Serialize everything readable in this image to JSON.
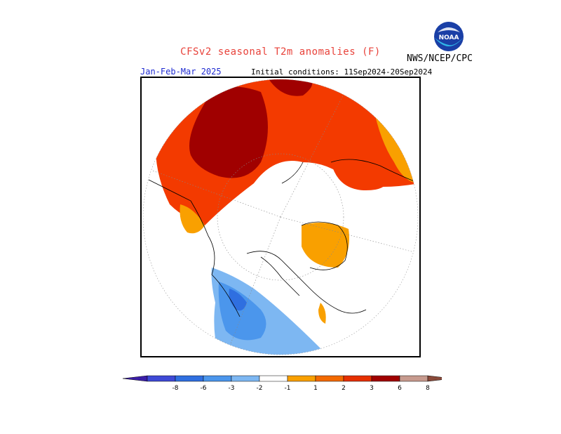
{
  "title": "CFSv2 seasonal T2m anomalies (F)",
  "agency": "NWS/NCEP/CPC",
  "logo_text": "NOAA",
  "period": "Jan-Feb-Mar 2025",
  "initial_conditions": "Initial conditions: 11Sep2024-20Sep2024",
  "colorbar": {
    "labels": [
      "-8",
      "-6",
      "-3",
      "-2",
      "-1",
      "1",
      "2",
      "3",
      "6",
      "8"
    ],
    "colors": [
      "#3b1ea8",
      "#3e49d6",
      "#2f6fe0",
      "#4b96ec",
      "#7db7f2",
      "#ffffff",
      "#f9a000",
      "#f36a00",
      "#e63000",
      "#a00000",
      "#c79a8e",
      "#8a4a3a"
    ]
  }
}
